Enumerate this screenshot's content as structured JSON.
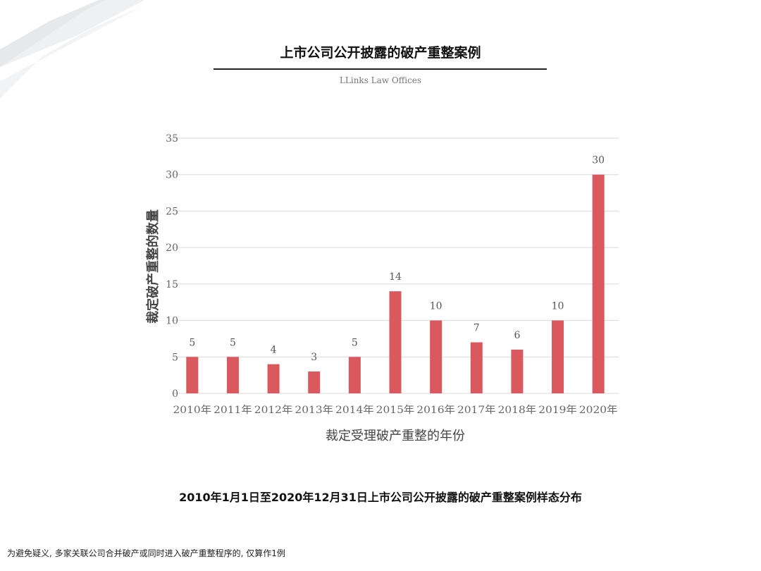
{
  "header": {
    "title": "上市公司公开披露的破产重整案例",
    "subtitle": "LLinks Law Offices"
  },
  "caption": "2010年1月1日至2020年12月31日上市公司公开披露的破产重整案例样态分布",
  "footnote": "为避免疑义, 多家关联公司合并破产或同时进入破产重整程序的, 仅算作1例",
  "chart_data": {
    "type": "bar",
    "title": "",
    "xlabel": "裁定受理破产重整的年份",
    "ylabel": "裁定破产重整的数量",
    "categories": [
      "2010年",
      "2011年",
      "2012年",
      "2013年",
      "2014年",
      "2015年",
      "2016年",
      "2017年",
      "2018年",
      "2019年",
      "2020年"
    ],
    "values": [
      5,
      5,
      4,
      3,
      5,
      14,
      10,
      7,
      6,
      10,
      30
    ],
    "ylim": [
      0,
      35
    ],
    "yticks": [
      "0",
      "5",
      "10",
      "15",
      "20",
      "25",
      "30",
      "35"
    ],
    "grid": true,
    "bar_color": "#d9595f",
    "data_labels": true
  }
}
